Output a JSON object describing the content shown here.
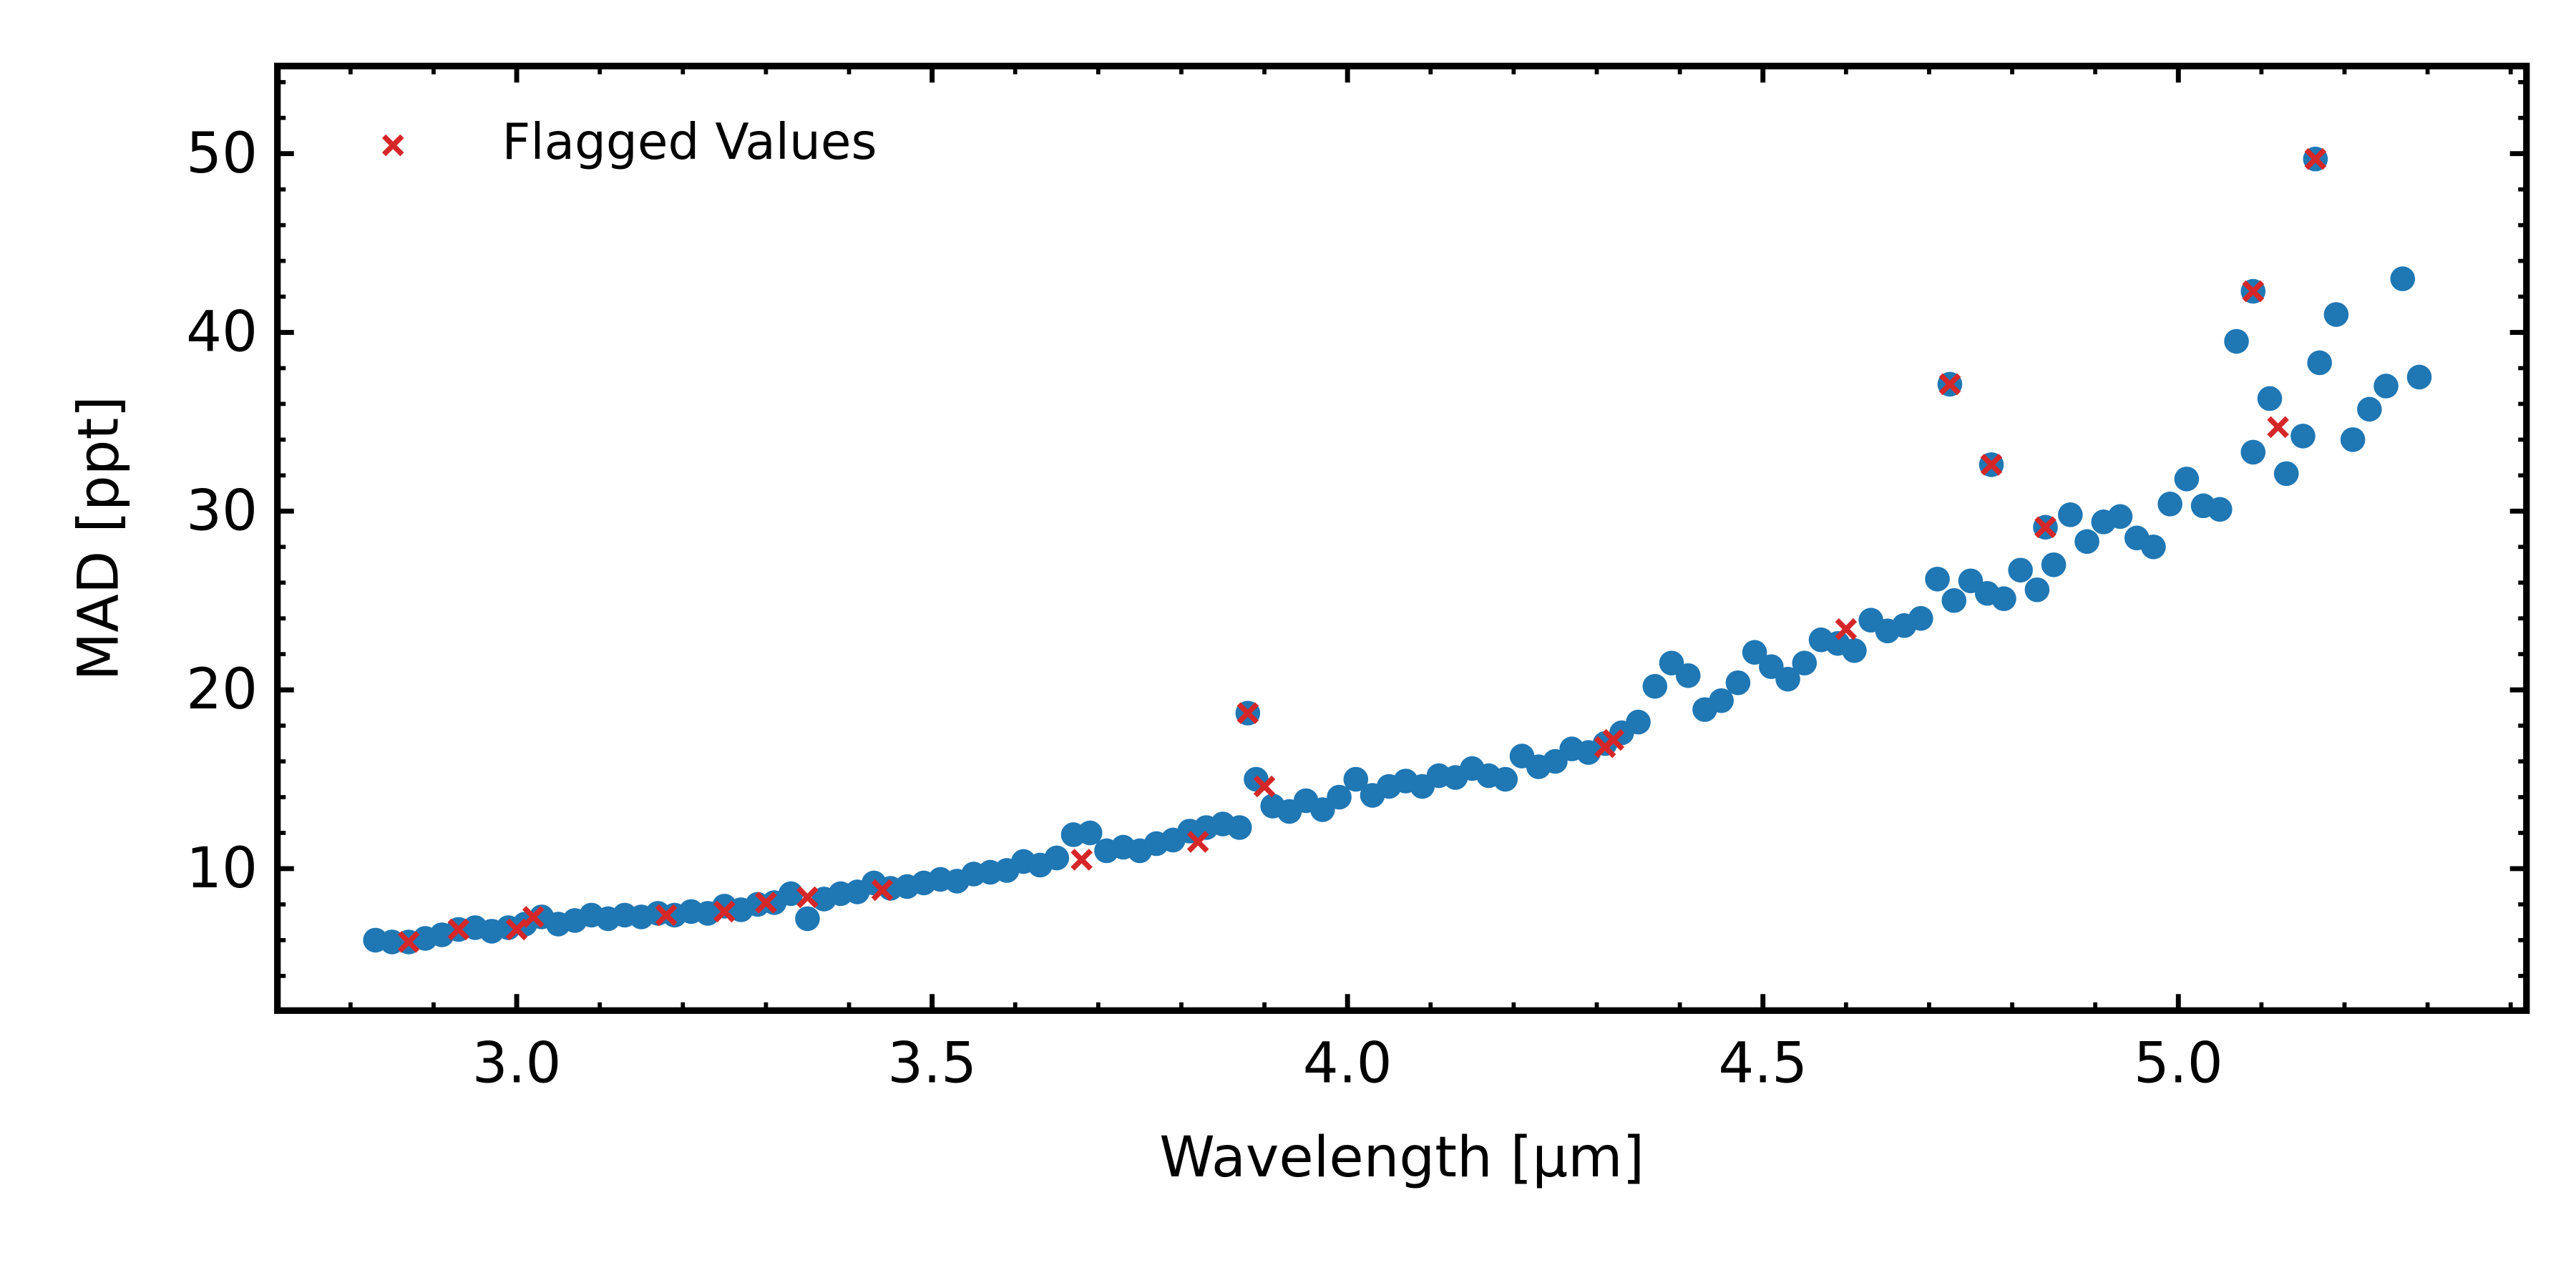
{
  "chart_data": {
    "type": "scatter",
    "xlabel": "Wavelength [μm]",
    "ylabel": "MAD [ppt]",
    "xlim": [
      2.712,
      5.419
    ],
    "ylim": [
      2.06,
      54.9
    ],
    "xticks": [
      {
        "value": 3,
        "label": "3.0"
      },
      {
        "value": 3.5,
        "label": "3.5"
      },
      {
        "value": 4,
        "label": "4.0"
      },
      {
        "value": 4.5,
        "label": "4.5"
      },
      {
        "value": 5,
        "label": "5.0"
      }
    ],
    "yticks": [
      10,
      20,
      30,
      40,
      50
    ],
    "xminorticks": [
      2.8,
      2.9,
      3.1,
      3.2,
      3.3,
      3.4,
      3.6,
      3.7,
      3.8,
      3.9,
      4.1,
      4.2,
      4.3,
      4.4,
      4.6,
      4.7,
      4.8,
      4.9,
      5.1,
      5.2,
      5.3,
      5.4
    ],
    "yminorticks": [
      4,
      6,
      8,
      12,
      14,
      16,
      18,
      22,
      24,
      26,
      28,
      32,
      34,
      36,
      38,
      42,
      44,
      46,
      48,
      52,
      54
    ],
    "legend": "upper left",
    "series": [
      {
        "marker": "circle",
        "color": "#1f77b4",
        "x": [
          2.83,
          2.85,
          2.87,
          2.89,
          2.91,
          2.93,
          2.95,
          2.97,
          2.99,
          3.01,
          3.03,
          3.05,
          3.07,
          3.09,
          3.11,
          3.13,
          3.15,
          3.17,
          3.19,
          3.21,
          3.23,
          3.25,
          3.27,
          3.29,
          3.31,
          3.33,
          3.35,
          3.37,
          3.39,
          3.41,
          3.43,
          3.45,
          3.47,
          3.49,
          3.51,
          3.53,
          3.55,
          3.57,
          3.59,
          3.61,
          3.63,
          3.65,
          3.67,
          3.69,
          3.71,
          3.73,
          3.75,
          3.77,
          3.79,
          3.81,
          3.83,
          3.85,
          3.87,
          3.89,
          3.91,
          3.93,
          3.95,
          3.97,
          3.99,
          4.01,
          4.03,
          4.05,
          4.07,
          4.09,
          4.11,
          4.13,
          4.15,
          4.17,
          4.19,
          4.21,
          4.23,
          4.25,
          4.27,
          4.29,
          4.31,
          4.33,
          4.35,
          4.37,
          4.39,
          4.41,
          4.43,
          4.45,
          4.47,
          4.49,
          4.51,
          4.53,
          4.55,
          4.57,
          4.59,
          4.61,
          4.63,
          4.65,
          4.67,
          4.69,
          4.71,
          4.73,
          4.75,
          4.77,
          4.79,
          4.81,
          4.83,
          4.85,
          4.87,
          4.89,
          4.91,
          4.93,
          4.95,
          4.97,
          4.99,
          5.01,
          5.03,
          5.05,
          5.07,
          5.09,
          5.11,
          5.13,
          5.15,
          5.17,
          5.19,
          5.21,
          5.23,
          5.25,
          5.27,
          5.29,
          3.88,
          4.725,
          4.775,
          4.84,
          5.09,
          5.165
        ],
        "values": [
          6.0,
          5.9,
          5.9,
          6.1,
          6.3,
          6.6,
          6.7,
          6.5,
          6.7,
          6.9,
          7.3,
          6.9,
          7.1,
          7.4,
          7.2,
          7.4,
          7.3,
          7.5,
          7.4,
          7.6,
          7.5,
          7.9,
          7.7,
          8.0,
          8.1,
          8.6,
          7.2,
          8.3,
          8.6,
          8.7,
          9.2,
          8.9,
          9.0,
          9.2,
          9.4,
          9.3,
          9.7,
          9.8,
          9.9,
          10.4,
          10.2,
          10.6,
          11.9,
          12.0,
          11.0,
          11.2,
          11.0,
          11.4,
          11.6,
          12.1,
          12.3,
          12.5,
          12.3,
          15.0,
          13.5,
          13.2,
          13.8,
          13.3,
          14.0,
          15.0,
          14.1,
          14.6,
          14.9,
          14.6,
          15.2,
          15.1,
          15.6,
          15.2,
          15.0,
          16.3,
          15.7,
          16.0,
          16.7,
          16.5,
          17.0,
          17.6,
          18.2,
          20.2,
          21.5,
          20.8,
          18.9,
          19.4,
          20.4,
          22.1,
          21.3,
          20.6,
          21.5,
          22.8,
          22.6,
          22.2,
          23.9,
          23.3,
          23.6,
          24.0,
          26.2,
          25.0,
          26.1,
          25.4,
          25.1,
          26.7,
          25.6,
          27.0,
          29.8,
          28.3,
          29.4,
          29.7,
          28.5,
          28.0,
          30.4,
          31.8,
          30.3,
          30.1,
          39.5,
          33.3,
          36.3,
          32.1,
          34.2,
          38.3,
          41.0,
          34.0,
          35.7,
          37.0,
          43.0,
          37.5,
          18.7,
          37.1,
          32.6,
          29.1,
          42.3,
          49.7
        ]
      },
      {
        "name": "Flagged Values",
        "marker": "x",
        "color": "#d62728",
        "x": [
          2.87,
          2.93,
          3.0,
          3.02,
          3.18,
          3.25,
          3.3,
          3.35,
          3.44,
          3.68,
          3.82,
          3.88,
          3.9,
          4.31,
          4.32,
          4.6,
          4.725,
          4.775,
          4.84,
          5.09,
          5.12,
          5.165
        ],
        "values": [
          5.9,
          6.6,
          6.6,
          7.3,
          7.4,
          7.6,
          8.1,
          8.4,
          8.8,
          10.5,
          11.5,
          18.7,
          14.6,
          16.8,
          17.2,
          23.4,
          37.1,
          32.6,
          29.1,
          42.3,
          34.7,
          49.7
        ]
      }
    ]
  }
}
